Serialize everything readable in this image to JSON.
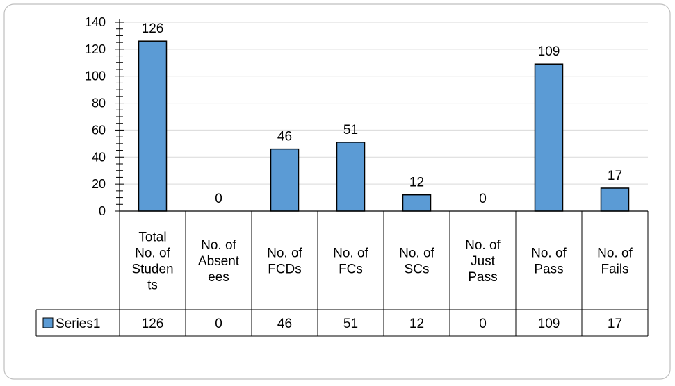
{
  "chart_data": {
    "type": "bar",
    "title": "",
    "xlabel": "",
    "ylabel": "",
    "ylim": [
      0,
      140
    ],
    "yticks": [
      0,
      20,
      40,
      60,
      80,
      100,
      120,
      140
    ],
    "grid": true,
    "legend_placement": "data-table-left",
    "categories": [
      [
        "Total",
        "No. of",
        "Studen",
        "ts"
      ],
      [
        "No. of",
        "Absent",
        "ees"
      ],
      [
        "No. of",
        "FCDs"
      ],
      [
        "No. of",
        "FCs"
      ],
      [
        "No. of",
        "SCs"
      ],
      [
        "No. of",
        "Just",
        "Pass"
      ],
      [
        "No. of",
        "Pass"
      ],
      [
        "No. of",
        "Fails"
      ]
    ],
    "series": [
      {
        "name": "Series1",
        "values": [
          126,
          0,
          46,
          51,
          12,
          0,
          109,
          17
        ],
        "color": "#5B9BD5"
      }
    ],
    "data_labels": [
      "126",
      "0",
      "46",
      "51",
      "12",
      "0",
      "109",
      "17"
    ],
    "table_values": [
      "126",
      "0",
      "46",
      "51",
      "12",
      "0",
      "109",
      "17"
    ]
  }
}
